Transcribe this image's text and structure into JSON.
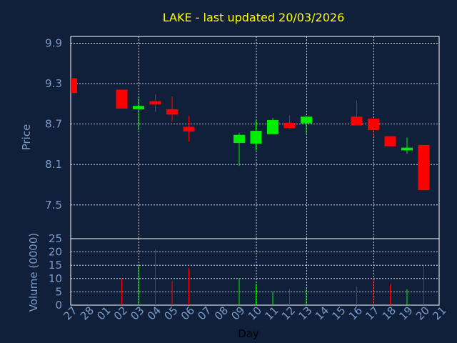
{
  "chart_data": {
    "type": "candlestick",
    "title": "LAKE - last updated 20/03/2026",
    "xlabel": "Day",
    "price_panel": {
      "ylabel": "Price",
      "ylim": [
        7.0,
        10.0
      ],
      "ticks": [
        7.5,
        8.1,
        8.7,
        9.3,
        9.9
      ],
      "tick_labels": [
        "7.5",
        "8.1",
        "8.7",
        "9.3",
        "9.9"
      ]
    },
    "volume_panel": {
      "ylabel": "Volume (0000)",
      "ylim": [
        0,
        25
      ],
      "ticks": [
        0,
        5,
        10,
        15,
        20,
        25
      ],
      "tick_labels": [
        "0",
        "5",
        "10",
        "15",
        "20",
        "25"
      ]
    },
    "x_labels": [
      "27",
      "28",
      "01",
      "02",
      "03",
      "04",
      "05",
      "06",
      "07",
      "08",
      "09",
      "10",
      "11",
      "12",
      "13",
      "14",
      "15",
      "16",
      "17",
      "18",
      "19",
      "20",
      "21"
    ],
    "grid": true,
    "colors": {
      "background": "#10203a",
      "up": "#00ee00",
      "down": "#ff0000",
      "title": "#ffff00",
      "axis_text": "#7a9cc8",
      "grid": "#ffffff"
    },
    "candles": [
      {
        "x": "27",
        "open": 9.38,
        "high": 9.38,
        "low": 9.16,
        "close": 9.16,
        "volume": 0
      },
      {
        "x": "02",
        "open": 9.21,
        "high": 9.21,
        "low": 8.93,
        "close": 8.93,
        "volume": 10
      },
      {
        "x": "03",
        "open": 8.92,
        "high": 9.08,
        "low": 8.61,
        "close": 8.97,
        "volume": 15
      },
      {
        "x": "04",
        "open": 9.04,
        "high": 9.14,
        "low": 8.88,
        "close": 8.99,
        "volume": 21
      },
      {
        "x": "05",
        "open": 8.92,
        "high": 9.11,
        "low": 8.73,
        "close": 8.84,
        "volume": 9
      },
      {
        "x": "06",
        "open": 8.66,
        "high": 8.82,
        "low": 8.44,
        "close": 8.59,
        "volume": 14
      },
      {
        "x": "09",
        "open": 8.42,
        "high": 8.57,
        "low": 8.08,
        "close": 8.54,
        "volume": 10
      },
      {
        "x": "10",
        "open": 8.41,
        "high": 8.75,
        "low": 8.31,
        "close": 8.6,
        "volume": 8
      },
      {
        "x": "11",
        "open": 8.55,
        "high": 8.79,
        "low": 8.55,
        "close": 8.76,
        "volume": 5
      },
      {
        "x": "12",
        "open": 8.72,
        "high": 8.83,
        "low": 8.63,
        "close": 8.64,
        "volume": 6
      },
      {
        "x": "13",
        "open": 8.71,
        "high": 8.82,
        "low": 8.55,
        "close": 8.81,
        "volume": 6
      },
      {
        "x": "16",
        "open": 8.81,
        "high": 9.05,
        "low": 8.68,
        "close": 8.68,
        "volume": 7
      },
      {
        "x": "17",
        "open": 8.78,
        "high": 8.78,
        "low": 8.51,
        "close": 8.61,
        "volume": 10
      },
      {
        "x": "18",
        "open": 8.52,
        "high": 8.52,
        "low": 8.37,
        "close": 8.37,
        "volume": 8
      },
      {
        "x": "19",
        "open": 8.31,
        "high": 8.5,
        "low": 8.26,
        "close": 8.35,
        "volume": 6
      },
      {
        "x": "20",
        "open": 8.39,
        "high": 8.39,
        "low": 7.72,
        "close": 7.72,
        "volume": 15
      }
    ]
  }
}
